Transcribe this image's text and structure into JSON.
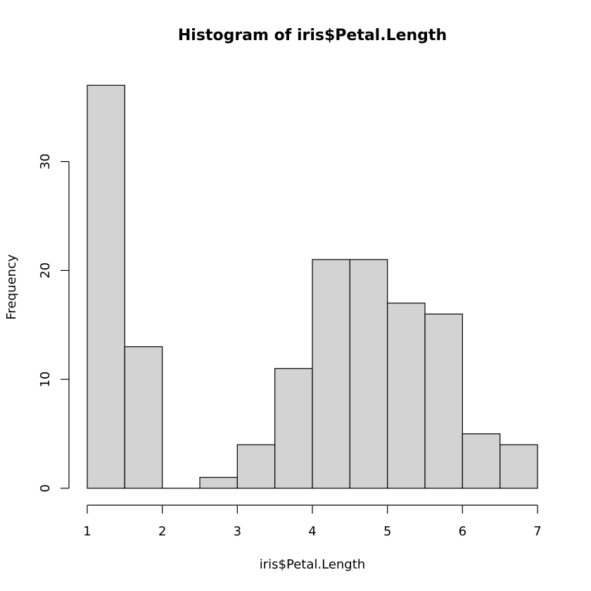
{
  "chart_data": {
    "type": "bar",
    "title": "Histogram of iris$Petal.Length",
    "xlabel": "iris$Petal.Length",
    "ylabel": "Frequency",
    "bin_edges": [
      1,
      1.5,
      2,
      2.5,
      3,
      3.5,
      4,
      4.5,
      5,
      5.5,
      6,
      6.5,
      7
    ],
    "values": [
      37,
      13,
      0,
      1,
      4,
      11,
      21,
      21,
      17,
      16,
      5,
      4
    ],
    "xlim": [
      1,
      7
    ],
    "ylim": [
      0,
      37
    ],
    "x_ticks": [
      1,
      2,
      3,
      4,
      5,
      6,
      7
    ],
    "y_ticks": [
      0,
      10,
      20,
      30
    ],
    "bar_fill": "#d3d3d3",
    "bar_stroke": "#000000",
    "grid": false
  }
}
